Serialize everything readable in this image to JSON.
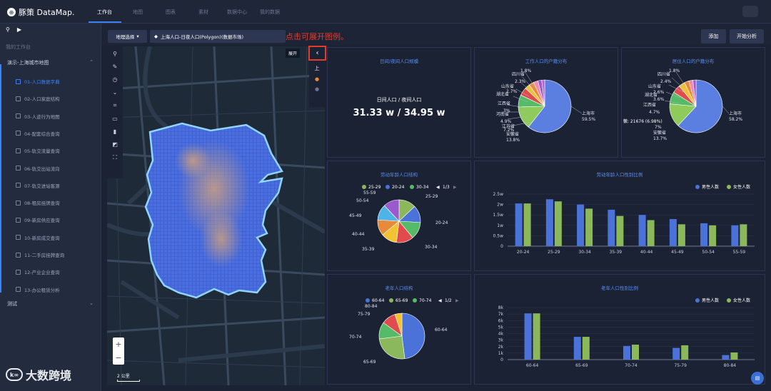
{
  "app": {
    "logo_text": "豚策 DataMap."
  },
  "nav": [
    "工作台",
    "地图",
    "图表",
    "素材",
    "数据中心",
    "我的数据"
  ],
  "sidebar": {
    "head": "我的工作台",
    "folder1": "演示-上海城市地图",
    "folder2": "测试",
    "items": [
      "01-人口数据字典",
      "02-人口家庭结构",
      "03-人迹行为地图",
      "04-配套综合查询",
      "05-轨交流量查询",
      "06-轨交出站流向",
      "07-轨交进站客源",
      "08-租房挂牌查询",
      "09-新房供应查询",
      "10-新房成交查询",
      "11-二手房挂牌查询",
      "12-产业企业查询",
      "13-办公租赁分析"
    ]
  },
  "watermark": "大数跨境",
  "toolbar": {
    "select_label": "地理选择",
    "tab_label": "上海人口-日夜人口(Polygon)(数据市场)",
    "annotation": "点击可展开图例。",
    "add_label": "添加",
    "start_label": "开始分析"
  },
  "map": {
    "tooltip": "展开",
    "collapse_icon": "‹",
    "legend_label": "上",
    "scale": "2 公里",
    "zoom_in": "+",
    "zoom_out": "−"
  },
  "panels": {
    "daynight": {
      "title": "日间/夜间人口规模",
      "subtitle": "日间人口 / 夜间人口",
      "value": "31.33 w / 34.95 w"
    },
    "work": {
      "title": "工作人口的户籍分布",
      "labels": [
        "四川省",
        "1.8%",
        "2.3%",
        "山东省",
        "2.7%",
        "湖北省",
        "3%",
        "江西省",
        "河南省",
        "4.9%",
        "江苏省",
        "7.2%",
        "安徽省",
        "13.8%",
        "上海市",
        "59.5%"
      ]
    },
    "resident": {
      "title": "居住人口的户籍分布",
      "tooltip": "徽: 21676 (6.98%)",
      "labels": [
        "四川省",
        "1.8%",
        "2.4%",
        "山东省",
        "2.6%",
        "湖北省",
        "3.6%",
        "江西省",
        "4.7%",
        "7%",
        "安徽省",
        "13.7%",
        "上海市",
        "58.2%"
      ]
    },
    "labor": {
      "title": "劳动年龄人口结构",
      "legend": [
        "25-29",
        "20-24",
        "30-34"
      ],
      "page": "1/3",
      "labels": [
        "55-59",
        "25-29",
        "50-54",
        "45-49",
        "20-24",
        "40-44",
        "35-39",
        "30-34"
      ]
    },
    "old": {
      "title": "老年人口结构",
      "legend": [
        "60-64",
        "65-69",
        "70-74"
      ],
      "page": "1/2",
      "labels": [
        "80-84",
        "75-79",
        "60-64",
        "70-74",
        "65-69"
      ]
    }
  },
  "chart_data": [
    {
      "type": "bar",
      "title": "劳动年龄人口性别比例",
      "categories": [
        "20-24",
        "25-29",
        "30-34",
        "35-39",
        "40-44",
        "45-49",
        "50-54",
        "55-59"
      ],
      "series": [
        {
          "name": "男性人数",
          "values": [
            2.05,
            2.25,
            2.0,
            1.75,
            1.5,
            1.3,
            1.1,
            1.0
          ]
        },
        {
          "name": "女性人数",
          "values": [
            2.05,
            2.15,
            1.8,
            1.45,
            1.25,
            1.05,
            1.0,
            1.05
          ]
        }
      ],
      "yticks": [
        "0",
        "0.5w",
        "1w",
        "1.5w",
        "2w",
        "2.5w"
      ],
      "ylim": [
        0,
        2.5
      ]
    },
    {
      "type": "bar",
      "title": "老年人口性别比例",
      "categories": [
        "60-64",
        "65-69",
        "70-74",
        "75-79",
        "80-84"
      ],
      "series": [
        {
          "name": "男性人数",
          "values": [
            7.1,
            3.5,
            2.1,
            1.8,
            0.7
          ]
        },
        {
          "name": "女性人数",
          "values": [
            7.1,
            3.5,
            2.3,
            2.2,
            1.1
          ]
        }
      ],
      "yticks": [
        "0",
        "1k",
        "2k",
        "3k",
        "4k",
        "5k",
        "6k",
        "7k",
        "8k"
      ],
      "ylim": [
        0,
        8
      ]
    }
  ],
  "colors": {
    "accent": "#3b82f6",
    "male": "#4a72d8",
    "female": "#8ab85a",
    "annotation": "#e33b2c"
  }
}
